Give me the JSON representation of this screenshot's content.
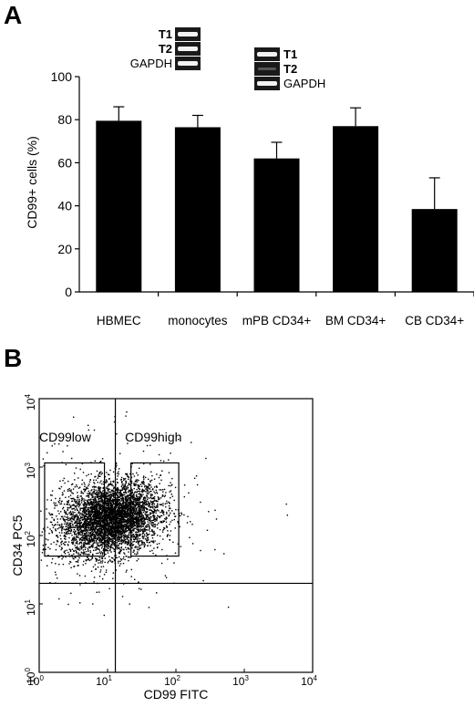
{
  "panel_a": {
    "letter": "A",
    "chart_data": {
      "type": "bar",
      "categories": [
        "HBMEC",
        "monocytes",
        "mPB CD34+",
        "BM CD34+",
        "CB CD34+"
      ],
      "values": [
        79.5,
        76.5,
        62,
        77,
        38.5
      ],
      "errors": [
        6.5,
        5.5,
        7.5,
        8.5,
        14.5
      ],
      "ylabel": "CD99+ cells (%)",
      "ylim": [
        0,
        100
      ],
      "yticks": [
        "0",
        "20",
        "40",
        "60",
        "80",
        "100"
      ],
      "grid": false,
      "bar_color": "#000000"
    },
    "gel_insets": [
      {
        "labels": [
          "T1",
          "T2",
          "GAPDH"
        ],
        "bands": [
          1,
          1,
          1
        ]
      },
      {
        "labels": [
          "T1",
          "T2",
          "GAPDH"
        ],
        "bands": [
          1,
          0.15,
          1
        ]
      }
    ]
  },
  "panel_b": {
    "letter": "B",
    "chart_data": {
      "type": "scatter",
      "xlabel": "CD99 FITC",
      "ylabel": "CD34 PC5",
      "xscale": "log",
      "yscale": "log",
      "xlim": [
        1,
        10000
      ],
      "ylim": [
        1,
        10000
      ],
      "x_tick_labels": [
        {
          "base": "10",
          "exp": "0"
        },
        {
          "base": "10",
          "exp": "1"
        },
        {
          "base": "10",
          "exp": "2"
        },
        {
          "base": "10",
          "exp": "3"
        },
        {
          "base": "10",
          "exp": "4"
        }
      ],
      "y_tick_labels": [
        {
          "base": "10",
          "exp": "0"
        },
        {
          "base": "10",
          "exp": "1"
        },
        {
          "base": "10",
          "exp": "2"
        },
        {
          "base": "10",
          "exp": "3"
        },
        {
          "base": "10",
          "exp": "4"
        }
      ],
      "quadrant_lines": {
        "x": 13,
        "y": 20
      },
      "gates": [
        {
          "label": "CD99low",
          "x_range": [
            1.2,
            9
          ],
          "y_range": [
            50,
            1150
          ]
        },
        {
          "label": "CD99high",
          "x_range": [
            22,
            110
          ],
          "y_range": [
            50,
            1150
          ]
        }
      ],
      "population": {
        "center_x": 11,
        "center_y": 180,
        "spread_log_x": 0.36,
        "spread_log_y": 0.26,
        "approx_events": 5000
      }
    }
  }
}
